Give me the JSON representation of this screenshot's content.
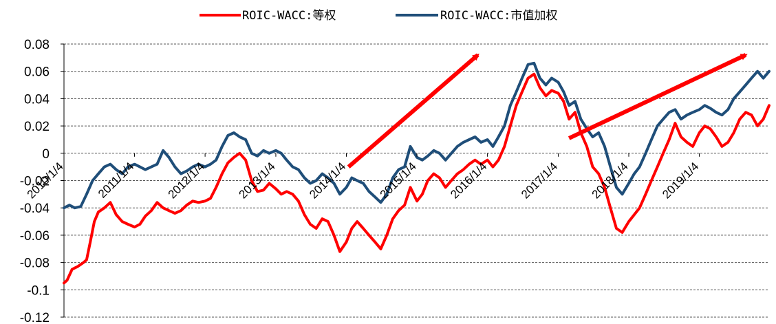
{
  "chart_data": {
    "type": "line",
    "title": "",
    "xlabel": "",
    "ylabel": "",
    "ylim": [
      -0.12,
      0.08
    ],
    "yticks": [
      0.08,
      0.06,
      0.04,
      0.02,
      0,
      -0.02,
      -0.04,
      -0.06,
      -0.08,
      -0.1,
      -0.12
    ],
    "ytick_labels": [
      "0.08",
      "0.06",
      "0.04",
      "0.02",
      "0",
      "-0.02",
      "-0.04",
      "-0.06",
      "-0.08",
      "-0.1",
      "-0.12"
    ],
    "xlim": [
      "2010-01-04",
      "2019-12-31"
    ],
    "xtick_labels": [
      "2010/1/4",
      "2011/1/4",
      "2012/1/4",
      "2013/1/4",
      "2014/1/4",
      "2015/1/4",
      "2016/1/4",
      "2017/1/4",
      "2018/1/4",
      "2019/1/4"
    ],
    "xtick_dates": [
      "2010-01-04",
      "2011-01-04",
      "2012-01-04",
      "2013-01-04",
      "2014-01-04",
      "2015-01-04",
      "2016-01-04",
      "2017-01-04",
      "2018-01-04",
      "2019-01-04"
    ],
    "grid": "horizontal dashed",
    "legend_position": "top-center",
    "series": [
      {
        "name": "ROIC-WACC:等权",
        "color": "#ff0000",
        "points": [
          [
            "2010-01-04",
            -0.095
          ],
          [
            "2010-01-20",
            -0.093
          ],
          [
            "2010-02-15",
            -0.085
          ],
          [
            "2010-03-15",
            -0.083
          ],
          [
            "2010-04-15",
            -0.08
          ],
          [
            "2010-05-01",
            -0.078
          ],
          [
            "2010-05-20",
            -0.065
          ],
          [
            "2010-06-10",
            -0.05
          ],
          [
            "2010-07-01",
            -0.043
          ],
          [
            "2010-08-01",
            -0.04
          ],
          [
            "2010-09-01",
            -0.036
          ],
          [
            "2010-10-01",
            -0.045
          ],
          [
            "2010-11-01",
            -0.05
          ],
          [
            "2010-12-01",
            -0.052
          ],
          [
            "2011-01-04",
            -0.054
          ],
          [
            "2011-02-01",
            -0.052
          ],
          [
            "2011-03-01",
            -0.046
          ],
          [
            "2011-04-01",
            -0.042
          ],
          [
            "2011-05-01",
            -0.036
          ],
          [
            "2011-06-01",
            -0.04
          ],
          [
            "2011-07-01",
            -0.042
          ],
          [
            "2011-08-01",
            -0.044
          ],
          [
            "2011-09-01",
            -0.042
          ],
          [
            "2011-10-01",
            -0.038
          ],
          [
            "2011-11-01",
            -0.035
          ],
          [
            "2011-12-01",
            -0.036
          ],
          [
            "2012-01-04",
            -0.035
          ],
          [
            "2012-02-01",
            -0.033
          ],
          [
            "2012-03-01",
            -0.025
          ],
          [
            "2012-04-01",
            -0.015
          ],
          [
            "2012-05-01",
            -0.007
          ],
          [
            "2012-06-01",
            -0.003
          ],
          [
            "2012-07-01",
            0.0
          ],
          [
            "2012-08-01",
            -0.005
          ],
          [
            "2012-09-01",
            -0.02
          ],
          [
            "2012-10-01",
            -0.028
          ],
          [
            "2012-11-01",
            -0.027
          ],
          [
            "2012-12-01",
            -0.022
          ],
          [
            "2013-01-04",
            -0.026
          ],
          [
            "2013-02-01",
            -0.03
          ],
          [
            "2013-03-01",
            -0.028
          ],
          [
            "2013-04-01",
            -0.03
          ],
          [
            "2013-05-01",
            -0.035
          ],
          [
            "2013-06-01",
            -0.045
          ],
          [
            "2013-07-01",
            -0.052
          ],
          [
            "2013-08-01",
            -0.055
          ],
          [
            "2013-09-01",
            -0.048
          ],
          [
            "2013-10-01",
            -0.05
          ],
          [
            "2013-11-01",
            -0.06
          ],
          [
            "2013-12-01",
            -0.072
          ],
          [
            "2014-01-04",
            -0.065
          ],
          [
            "2014-02-01",
            -0.055
          ],
          [
            "2014-03-01",
            -0.05
          ],
          [
            "2014-04-01",
            -0.055
          ],
          [
            "2014-05-01",
            -0.06
          ],
          [
            "2014-06-01",
            -0.065
          ],
          [
            "2014-07-01",
            -0.07
          ],
          [
            "2014-08-01",
            -0.06
          ],
          [
            "2014-09-01",
            -0.048
          ],
          [
            "2014-10-01",
            -0.042
          ],
          [
            "2014-11-01",
            -0.038
          ],
          [
            "2014-12-01",
            -0.025
          ],
          [
            "2015-01-04",
            -0.035
          ],
          [
            "2015-02-01",
            -0.03
          ],
          [
            "2015-03-01",
            -0.02
          ],
          [
            "2015-04-01",
            -0.015
          ],
          [
            "2015-05-01",
            -0.018
          ],
          [
            "2015-06-01",
            -0.025
          ],
          [
            "2015-07-01",
            -0.02
          ],
          [
            "2015-08-01",
            -0.015
          ],
          [
            "2015-09-01",
            -0.012
          ],
          [
            "2015-10-01",
            -0.008
          ],
          [
            "2015-11-01",
            -0.005
          ],
          [
            "2015-12-01",
            -0.008
          ],
          [
            "2016-01-04",
            -0.005
          ],
          [
            "2016-02-01",
            -0.01
          ],
          [
            "2016-03-01",
            -0.005
          ],
          [
            "2016-04-01",
            0.005
          ],
          [
            "2016-05-01",
            0.02
          ],
          [
            "2016-06-01",
            0.035
          ],
          [
            "2016-07-01",
            0.045
          ],
          [
            "2016-08-01",
            0.055
          ],
          [
            "2016-09-01",
            0.058
          ],
          [
            "2016-10-01",
            0.048
          ],
          [
            "2016-11-01",
            0.042
          ],
          [
            "2016-12-01",
            0.046
          ],
          [
            "2017-01-04",
            0.044
          ],
          [
            "2017-02-01",
            0.038
          ],
          [
            "2017-03-01",
            0.025
          ],
          [
            "2017-04-01",
            0.03
          ],
          [
            "2017-05-01",
            0.015
          ],
          [
            "2017-06-01",
            0.005
          ],
          [
            "2017-07-01",
            -0.01
          ],
          [
            "2017-08-01",
            -0.015
          ],
          [
            "2017-09-01",
            -0.025
          ],
          [
            "2017-10-01",
            -0.04
          ],
          [
            "2017-11-01",
            -0.055
          ],
          [
            "2017-12-01",
            -0.058
          ],
          [
            "2018-01-04",
            -0.05
          ],
          [
            "2018-02-01",
            -0.045
          ],
          [
            "2018-03-01",
            -0.04
          ],
          [
            "2018-04-01",
            -0.03
          ],
          [
            "2018-05-01",
            -0.02
          ],
          [
            "2018-06-01",
            -0.01
          ],
          [
            "2018-07-01",
            0.0
          ],
          [
            "2018-08-01",
            0.01
          ],
          [
            "2018-09-01",
            0.022
          ],
          [
            "2018-10-01",
            0.012
          ],
          [
            "2018-11-01",
            0.008
          ],
          [
            "2018-12-01",
            0.005
          ],
          [
            "2019-01-04",
            0.015
          ],
          [
            "2019-02-01",
            0.02
          ],
          [
            "2019-03-01",
            0.018
          ],
          [
            "2019-04-01",
            0.012
          ],
          [
            "2019-05-01",
            0.005
          ],
          [
            "2019-06-01",
            0.008
          ],
          [
            "2019-07-01",
            0.015
          ],
          [
            "2019-08-01",
            0.025
          ],
          [
            "2019-09-01",
            0.03
          ],
          [
            "2019-10-01",
            0.028
          ],
          [
            "2019-11-01",
            0.02
          ],
          [
            "2019-12-01",
            0.025
          ],
          [
            "2019-12-31",
            0.035
          ]
        ]
      },
      {
        "name": "ROIC-WACC:市值加权",
        "color": "#1f4e79",
        "points": [
          [
            "2010-01-04",
            -0.04
          ],
          [
            "2010-02-01",
            -0.038
          ],
          [
            "2010-03-01",
            -0.04
          ],
          [
            "2010-04-01",
            -0.039
          ],
          [
            "2010-05-01",
            -0.03
          ],
          [
            "2010-06-01",
            -0.02
          ],
          [
            "2010-07-01",
            -0.015
          ],
          [
            "2010-08-01",
            -0.01
          ],
          [
            "2010-09-01",
            -0.008
          ],
          [
            "2010-10-01",
            -0.012
          ],
          [
            "2010-11-01",
            -0.015
          ],
          [
            "2010-12-01",
            -0.01
          ],
          [
            "2011-01-04",
            -0.008
          ],
          [
            "2011-02-01",
            -0.01
          ],
          [
            "2011-03-01",
            -0.012
          ],
          [
            "2011-04-01",
            -0.01
          ],
          [
            "2011-05-01",
            -0.008
          ],
          [
            "2011-06-01",
            0.002
          ],
          [
            "2011-07-01",
            -0.003
          ],
          [
            "2011-08-01",
            -0.01
          ],
          [
            "2011-09-01",
            -0.015
          ],
          [
            "2011-10-01",
            -0.013
          ],
          [
            "2011-11-01",
            -0.01
          ],
          [
            "2011-12-01",
            -0.008
          ],
          [
            "2012-01-04",
            -0.01
          ],
          [
            "2012-02-01",
            -0.008
          ],
          [
            "2012-03-01",
            -0.005
          ],
          [
            "2012-04-01",
            0.005
          ],
          [
            "2012-05-01",
            0.013
          ],
          [
            "2012-06-01",
            0.015
          ],
          [
            "2012-07-01",
            0.012
          ],
          [
            "2012-08-01",
            0.01
          ],
          [
            "2012-09-01",
            0.0
          ],
          [
            "2012-10-01",
            -0.002
          ],
          [
            "2012-11-01",
            0.002
          ],
          [
            "2012-12-01",
            0.0
          ],
          [
            "2013-01-04",
            0.002
          ],
          [
            "2013-02-01",
            0.0
          ],
          [
            "2013-03-01",
            -0.005
          ],
          [
            "2013-04-01",
            -0.01
          ],
          [
            "2013-05-01",
            -0.012
          ],
          [
            "2013-06-01",
            -0.018
          ],
          [
            "2013-07-01",
            -0.022
          ],
          [
            "2013-08-01",
            -0.02
          ],
          [
            "2013-09-01",
            -0.015
          ],
          [
            "2013-10-01",
            -0.018
          ],
          [
            "2013-11-01",
            -0.022
          ],
          [
            "2013-12-01",
            -0.03
          ],
          [
            "2014-01-04",
            -0.025
          ],
          [
            "2014-02-01",
            -0.018
          ],
          [
            "2014-03-01",
            -0.02
          ],
          [
            "2014-04-01",
            -0.022
          ],
          [
            "2014-05-01",
            -0.028
          ],
          [
            "2014-06-01",
            -0.032
          ],
          [
            "2014-07-01",
            -0.036
          ],
          [
            "2014-08-01",
            -0.03
          ],
          [
            "2014-09-01",
            -0.018
          ],
          [
            "2014-10-01",
            -0.012
          ],
          [
            "2014-11-01",
            -0.01
          ],
          [
            "2014-12-01",
            0.005
          ],
          [
            "2015-01-04",
            -0.003
          ],
          [
            "2015-02-01",
            -0.005
          ],
          [
            "2015-03-01",
            -0.002
          ],
          [
            "2015-04-01",
            0.002
          ],
          [
            "2015-05-01",
            0.0
          ],
          [
            "2015-06-01",
            -0.005
          ],
          [
            "2015-07-01",
            0.0
          ],
          [
            "2015-08-01",
            0.005
          ],
          [
            "2015-09-01",
            0.008
          ],
          [
            "2015-10-01",
            0.01
          ],
          [
            "2015-11-01",
            0.012
          ],
          [
            "2015-12-01",
            0.008
          ],
          [
            "2016-01-04",
            0.01
          ],
          [
            "2016-02-01",
            0.005
          ],
          [
            "2016-03-01",
            0.012
          ],
          [
            "2016-04-01",
            0.02
          ],
          [
            "2016-05-01",
            0.035
          ],
          [
            "2016-06-01",
            0.045
          ],
          [
            "2016-07-01",
            0.055
          ],
          [
            "2016-08-01",
            0.065
          ],
          [
            "2016-09-01",
            0.066
          ],
          [
            "2016-10-01",
            0.055
          ],
          [
            "2016-11-01",
            0.05
          ],
          [
            "2016-12-01",
            0.055
          ],
          [
            "2017-01-04",
            0.052
          ],
          [
            "2017-02-01",
            0.045
          ],
          [
            "2017-03-01",
            0.035
          ],
          [
            "2017-04-01",
            0.038
          ],
          [
            "2017-05-01",
            0.025
          ],
          [
            "2017-06-01",
            0.018
          ],
          [
            "2017-07-01",
            0.012
          ],
          [
            "2017-08-01",
            0.015
          ],
          [
            "2017-09-01",
            0.005
          ],
          [
            "2017-10-01",
            -0.01
          ],
          [
            "2017-11-01",
            -0.025
          ],
          [
            "2017-12-01",
            -0.03
          ],
          [
            "2018-01-04",
            -0.022
          ],
          [
            "2018-02-01",
            -0.015
          ],
          [
            "2018-03-01",
            -0.01
          ],
          [
            "2018-04-01",
            0.0
          ],
          [
            "2018-05-01",
            0.01
          ],
          [
            "2018-06-01",
            0.02
          ],
          [
            "2018-07-01",
            0.025
          ],
          [
            "2018-08-01",
            0.03
          ],
          [
            "2018-09-01",
            0.032
          ],
          [
            "2018-10-01",
            0.025
          ],
          [
            "2018-11-01",
            0.028
          ],
          [
            "2018-12-01",
            0.03
          ],
          [
            "2019-01-04",
            0.032
          ],
          [
            "2019-02-01",
            0.035
          ],
          [
            "2019-03-01",
            0.033
          ],
          [
            "2019-04-01",
            0.03
          ],
          [
            "2019-05-01",
            0.028
          ],
          [
            "2019-06-01",
            0.032
          ],
          [
            "2019-07-01",
            0.04
          ],
          [
            "2019-08-01",
            0.045
          ],
          [
            "2019-09-01",
            0.05
          ],
          [
            "2019-10-01",
            0.055
          ],
          [
            "2019-11-01",
            0.06
          ],
          [
            "2019-12-01",
            0.055
          ],
          [
            "2019-12-31",
            0.06
          ]
        ]
      }
    ],
    "annotations": [
      {
        "type": "arrow",
        "color": "#ff0000",
        "from": [
          "2014-01-15",
          -0.01
        ],
        "to": [
          "2015-11-15",
          0.072
        ]
      },
      {
        "type": "arrow",
        "color": "#ff0000",
        "from": [
          "2017-03-01",
          0.011
        ],
        "to": [
          "2019-09-01",
          0.072
        ]
      }
    ]
  }
}
